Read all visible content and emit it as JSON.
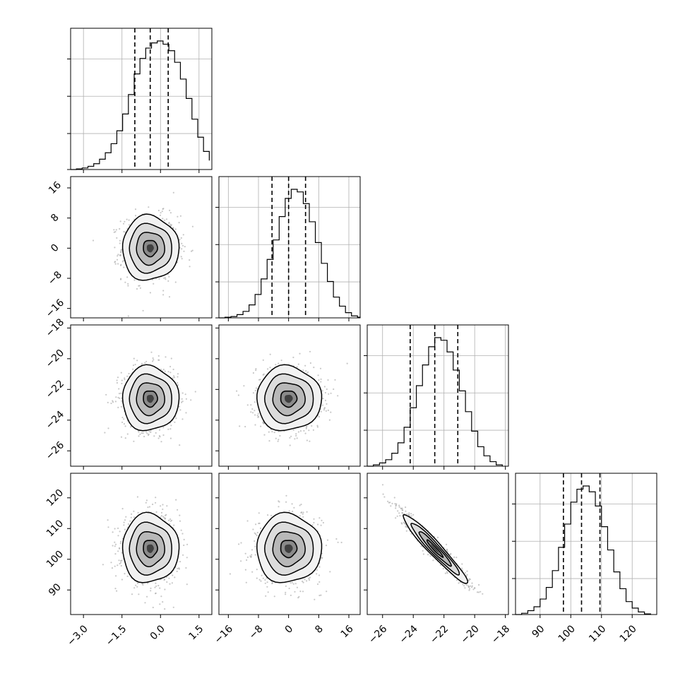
{
  "figure": {
    "type": "corner-plot"
  },
  "chart_data": {
    "type": "corner",
    "parameters": [
      {
        "range": [
          -3.5,
          2.0
        ],
        "ticks": [
          -3.0,
          -1.5,
          0.0,
          1.5
        ],
        "tick_labels": [
          "−3.0",
          "−1.5",
          "0.0",
          "1.5"
        ]
      },
      {
        "range": [
          -18.5,
          19.0
        ],
        "ticks": [
          -16,
          -8,
          0,
          8,
          16
        ],
        "tick_labels": [
          "−16",
          "−8",
          "0",
          "8",
          "16"
        ]
      },
      {
        "range": [
          -27.0,
          -17.8
        ],
        "ticks": [
          -26,
          -24,
          -22,
          -20,
          -18
        ],
        "tick_labels": [
          "−26",
          "−24",
          "−22",
          "−20",
          "−18"
        ]
      },
      {
        "range": [
          82.0,
          128.0
        ],
        "ticks": [
          90,
          100,
          110,
          120
        ],
        "tick_labels": [
          "90",
          "100",
          "110",
          "120"
        ]
      }
    ],
    "marginals": [
      {
        "bin_edges": [
          -3.5,
          -3.275,
          -3.05,
          -2.825,
          -2.6,
          -2.375,
          -2.15,
          -1.925,
          -1.7,
          -1.475,
          -1.25,
          -1.025,
          -0.8,
          -0.575,
          -0.35,
          -0.125,
          0.1,
          0.325,
          0.55,
          0.775,
          1.0,
          1.225,
          1.45,
          1.675,
          1.9
        ],
        "counts": [
          0.0,
          0.005,
          0.012,
          0.025,
          0.045,
          0.08,
          0.13,
          0.2,
          0.3,
          0.43,
          0.58,
          0.74,
          0.86,
          0.94,
          0.98,
          0.995,
          0.97,
          0.92,
          0.83,
          0.7,
          0.55,
          0.39,
          0.25,
          0.14,
          0.07
        ],
        "quantiles": [
          -1.0,
          -0.4,
          0.3
        ]
      },
      {
        "bin_edges": [
          -18.5,
          -16.9,
          -15.3,
          -13.7,
          -12.1,
          -10.5,
          -8.9,
          -7.3,
          -5.7,
          -4.1,
          -2.5,
          -0.9,
          0.7,
          2.3,
          3.9,
          5.5,
          7.1,
          8.7,
          10.3,
          11.9,
          13.5,
          15.1,
          16.7,
          18.3,
          19.9
        ],
        "counts": [
          0.0,
          0.005,
          0.01,
          0.025,
          0.05,
          0.1,
          0.18,
          0.3,
          0.45,
          0.6,
          0.78,
          0.92,
          0.99,
          0.97,
          0.88,
          0.74,
          0.58,
          0.42,
          0.28,
          0.16,
          0.09,
          0.04,
          0.015,
          0.005,
          0.0
        ],
        "quantiles": [
          -4.4,
          0.0,
          4.5
        ]
      },
      {
        "bin_edges": [
          -27.0,
          -26.6,
          -26.2,
          -25.8,
          -25.4,
          -25.0,
          -24.6,
          -24.2,
          -23.8,
          -23.4,
          -23.0,
          -22.6,
          -22.2,
          -21.8,
          -21.4,
          -21.0,
          -20.6,
          -20.2,
          -19.8,
          -19.4,
          -19.0,
          -18.6,
          -18.2
        ],
        "counts": [
          0.0,
          0.01,
          0.025,
          0.05,
          0.1,
          0.18,
          0.3,
          0.45,
          0.62,
          0.78,
          0.92,
          0.99,
          0.97,
          0.88,
          0.74,
          0.58,
          0.42,
          0.27,
          0.15,
          0.08,
          0.035,
          0.01,
          0.0
        ],
        "quantiles": [
          -24.2,
          -22.6,
          -21.1
        ]
      },
      {
        "bin_edges": [
          82.0,
          84.0,
          86.0,
          88.0,
          90.0,
          92.0,
          94.0,
          96.0,
          98.0,
          100.0,
          102.0,
          104.0,
          106.0,
          108.0,
          110.0,
          112.0,
          114.0,
          116.0,
          118.0,
          120.0,
          122.0,
          124.0,
          126.0
        ],
        "counts": [
          0.0,
          0.01,
          0.03,
          0.06,
          0.12,
          0.21,
          0.34,
          0.52,
          0.7,
          0.87,
          0.97,
          0.995,
          0.95,
          0.84,
          0.68,
          0.5,
          0.33,
          0.2,
          0.1,
          0.05,
          0.02,
          0.005,
          0.0
        ],
        "quantiles": [
          97.6,
          103.5,
          109.5
        ]
      }
    ],
    "joint": [
      {
        "x": 0,
        "y": 1,
        "mean": [
          -0.4,
          0.0
        ],
        "sd": [
          0.55,
          4.3
        ],
        "corr": 0.0
      },
      {
        "x": 0,
        "y": 2,
        "mean": [
          -0.4,
          -22.6
        ],
        "sd": [
          0.55,
          1.05
        ],
        "corr": 0.0
      },
      {
        "x": 1,
        "y": 2,
        "mean": [
          0.0,
          -22.6
        ],
        "sd": [
          4.3,
          1.05
        ],
        "corr": 0.0
      },
      {
        "x": 0,
        "y": 3,
        "mean": [
          -0.4,
          103.5
        ],
        "sd": [
          0.55,
          5.6
        ],
        "corr": 0.0
      },
      {
        "x": 1,
        "y": 3,
        "mean": [
          0.0,
          103.5
        ],
        "sd": [
          4.3,
          5.6
        ],
        "corr": 0.0
      },
      {
        "x": 2,
        "y": 3,
        "mean": [
          -22.6,
          103.5
        ],
        "sd": [
          1.05,
          5.6
        ],
        "corr": -0.96
      }
    ],
    "contour_levels": [
      0.5,
      1.0,
      1.5,
      2.0
    ],
    "grid": true,
    "colors": {
      "line": "#000000",
      "grid": "#b0b0b0",
      "scatter": "#9a9a9a"
    }
  }
}
